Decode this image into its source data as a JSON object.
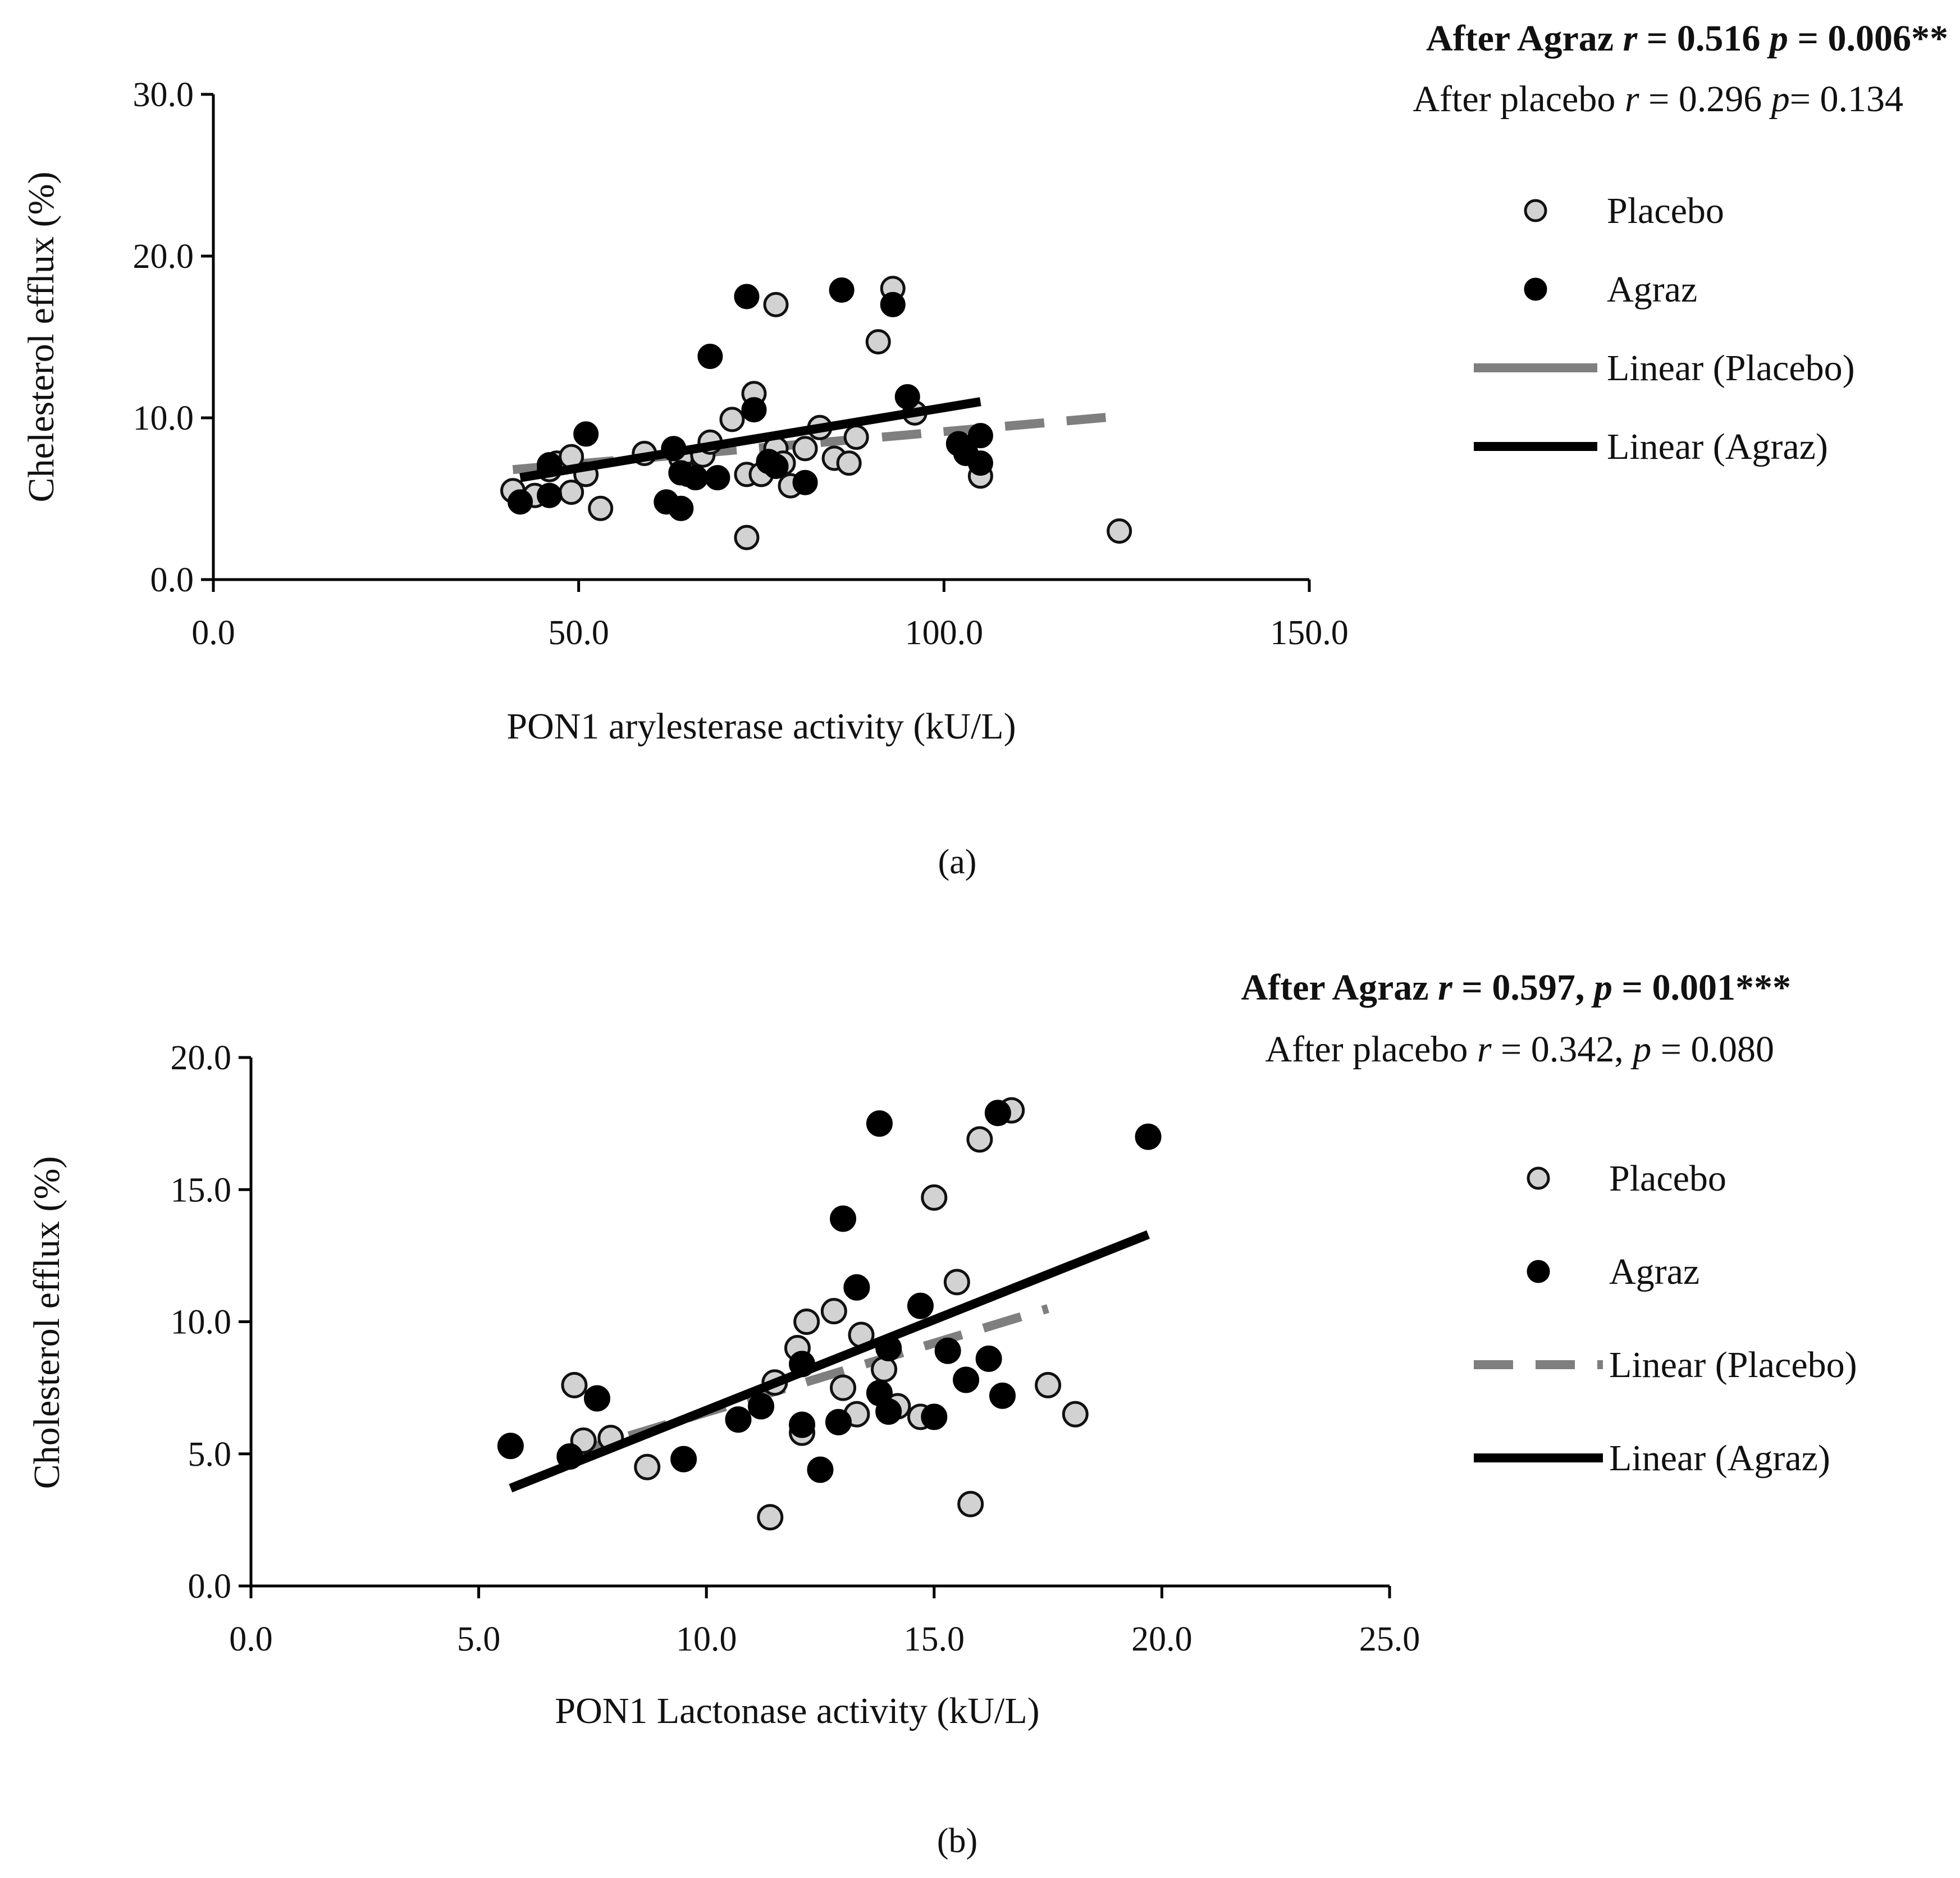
{
  "chart_data": [
    {
      "type": "scatter",
      "panel_label": "(a)",
      "xlabel": "PON1 arylesterase activity  (kU/L)",
      "ylabel": "Chelesterol efflux (%)",
      "xlim": [
        0,
        150
      ],
      "ylim": [
        0,
        30
      ],
      "xticks": [
        "0.0",
        "50.0",
        "100.0",
        "150.0"
      ],
      "yticks": [
        "0.0",
        "10.0",
        "20.0",
        "30.0"
      ],
      "xtick_values": [
        0,
        50,
        100,
        150
      ],
      "ytick_values": [
        0,
        10,
        20,
        30
      ],
      "stats": {
        "agraz": {
          "prefix": "After Agraz ",
          "r_sym": "r",
          "r_val": " = 0.516 ",
          "p_sym": "p",
          "p_val": " = 0.006**"
        },
        "placebo": {
          "prefix": "After placebo ",
          "r_sym": "r",
          "r_val": " = 0.296 ",
          "p_sym": "p",
          "p_val": "= 0.134"
        }
      },
      "legend": [
        "Placebo",
        "Agraz",
        "Linear (Placebo)",
        "Linear (Agraz)"
      ],
      "series": [
        {
          "name": "Placebo",
          "points": [
            [
              41,
              5.5
            ],
            [
              44,
              5.2
            ],
            [
              46,
              6.8
            ],
            [
              47,
              7.2
            ],
            [
              49,
              7.6
            ],
            [
              49,
              5.4
            ],
            [
              51,
              6.5
            ],
            [
              53,
              4.4
            ],
            [
              59,
              7.8
            ],
            [
              64,
              7.5
            ],
            [
              65,
              6.5
            ],
            [
              67,
              7.7
            ],
            [
              68,
              8.5
            ],
            [
              71,
              9.9
            ],
            [
              73,
              2.6
            ],
            [
              73,
              6.5
            ],
            [
              74,
              11.5
            ],
            [
              75,
              6.5
            ],
            [
              77,
              17
            ],
            [
              77,
              8.1
            ],
            [
              78,
              7.2
            ],
            [
              79,
              5.8
            ],
            [
              81,
              8.1
            ],
            [
              83,
              9.4
            ],
            [
              85,
              7.5
            ],
            [
              87,
              7.2
            ],
            [
              88,
              8.8
            ],
            [
              91,
              14.7
            ],
            [
              93,
              18
            ],
            [
              96,
              10.3
            ],
            [
              105,
              6.4
            ],
            [
              124,
              3.0
            ]
          ]
        },
        {
          "name": "Agraz",
          "points": [
            [
              42,
              4.8
            ],
            [
              46,
              5.2
            ],
            [
              46,
              7.1
            ],
            [
              51,
              9
            ],
            [
              62,
              4.8
            ],
            [
              63,
              8.1
            ],
            [
              64,
              4.4
            ],
            [
              64,
              6.6
            ],
            [
              66,
              6.3
            ],
            [
              68,
              13.8
            ],
            [
              69,
              6.3
            ],
            [
              73,
              17.5
            ],
            [
              74,
              10.5
            ],
            [
              76,
              7.3
            ],
            [
              77,
              7.0
            ],
            [
              81,
              6.0
            ],
            [
              86,
              17.9
            ],
            [
              93,
              17
            ],
            [
              95,
              11.3
            ],
            [
              102,
              8.4
            ],
            [
              103,
              7.8
            ],
            [
              105,
              8.9
            ],
            [
              105,
              7.2
            ]
          ]
        }
      ],
      "trendlines": [
        {
          "name": "Linear (Placebo)",
          "x": [
            41,
            124
          ],
          "y": [
            6.8,
            10.1
          ]
        },
        {
          "name": "Linear (Agraz)",
          "x": [
            42,
            105
          ],
          "y": [
            6.3,
            11.0
          ]
        }
      ]
    },
    {
      "type": "scatter",
      "panel_label": "(b)",
      "xlabel": "PON1 Lactonase activity  (kU/L)",
      "ylabel": "Cholesterol efflux (%)",
      "xlim": [
        0,
        25
      ],
      "ylim": [
        0,
        20
      ],
      "xticks": [
        "0.0",
        "5.0",
        "10.0",
        "15.0",
        "20.0",
        "25.0"
      ],
      "yticks": [
        "0.0",
        "5.0",
        "10.0",
        "15.0",
        "20.0"
      ],
      "xtick_values": [
        0,
        5,
        10,
        15,
        20,
        25
      ],
      "ytick_values": [
        0,
        5,
        10,
        15,
        20
      ],
      "stats": {
        "agraz": {
          "prefix": "After Agraz ",
          "r_sym": "r",
          "r_val": " = 0.597, ",
          "p_sym": "p",
          "p_val": " = 0.001***"
        },
        "placebo": {
          "prefix": "After placebo ",
          "r_sym": "r",
          "r_val": " = 0.342, ",
          "p_sym": "p",
          "p_val": " = 0.080"
        }
      },
      "legend": [
        "Placebo",
        "Agraz",
        "Linear (Placebo)",
        "Linear (Agraz)"
      ],
      "series": [
        {
          "name": "Placebo",
          "points": [
            [
              7.1,
              7.6
            ],
            [
              7.3,
              5.5
            ],
            [
              7.9,
              5.6
            ],
            [
              8.7,
              4.5
            ],
            [
              11.4,
              2.6
            ],
            [
              11.5,
              7.7
            ],
            [
              12.0,
              9.0
            ],
            [
              12.1,
              5.8
            ],
            [
              12.2,
              10.0
            ],
            [
              12.8,
              10.4
            ],
            [
              13.0,
              7.5
            ],
            [
              13.3,
              6.5
            ],
            [
              13.4,
              9.5
            ],
            [
              13.9,
              8.2
            ],
            [
              14.2,
              6.8
            ],
            [
              14.7,
              6.4
            ],
            [
              15.0,
              14.7
            ],
            [
              15.5,
              11.5
            ],
            [
              15.8,
              3.1
            ],
            [
              16.0,
              16.9
            ],
            [
              16.7,
              18.0
            ],
            [
              17.5,
              7.6
            ],
            [
              18.1,
              6.5
            ]
          ]
        },
        {
          "name": "Agraz",
          "points": [
            [
              5.7,
              5.3
            ],
            [
              7.0,
              4.9
            ],
            [
              7.6,
              7.1
            ],
            [
              9.5,
              4.8
            ],
            [
              10.7,
              6.3
            ],
            [
              11.2,
              6.8
            ],
            [
              12.1,
              6.1
            ],
            [
              12.1,
              8.4
            ],
            [
              12.5,
              4.4
            ],
            [
              12.9,
              6.2
            ],
            [
              13.0,
              13.9
            ],
            [
              13.3,
              11.3
            ],
            [
              13.8,
              17.5
            ],
            [
              13.8,
              7.3
            ],
            [
              14.0,
              6.6
            ],
            [
              14.0,
              9.0
            ],
            [
              14.7,
              10.6
            ],
            [
              15.0,
              6.4
            ],
            [
              15.3,
              8.9
            ],
            [
              15.7,
              7.8
            ],
            [
              16.2,
              8.6
            ],
            [
              16.4,
              17.9
            ],
            [
              16.5,
              7.2
            ],
            [
              19.7,
              17.0
            ]
          ]
        }
      ],
      "trendlines": [
        {
          "name": "Linear (Placebo)",
          "x": [
            7.0,
            17.5
          ],
          "y": [
            5.0,
            10.5
          ]
        },
        {
          "name": "Linear (Agraz)",
          "x": [
            5.7,
            19.7
          ],
          "y": [
            3.7,
            13.3
          ]
        }
      ]
    }
  ]
}
